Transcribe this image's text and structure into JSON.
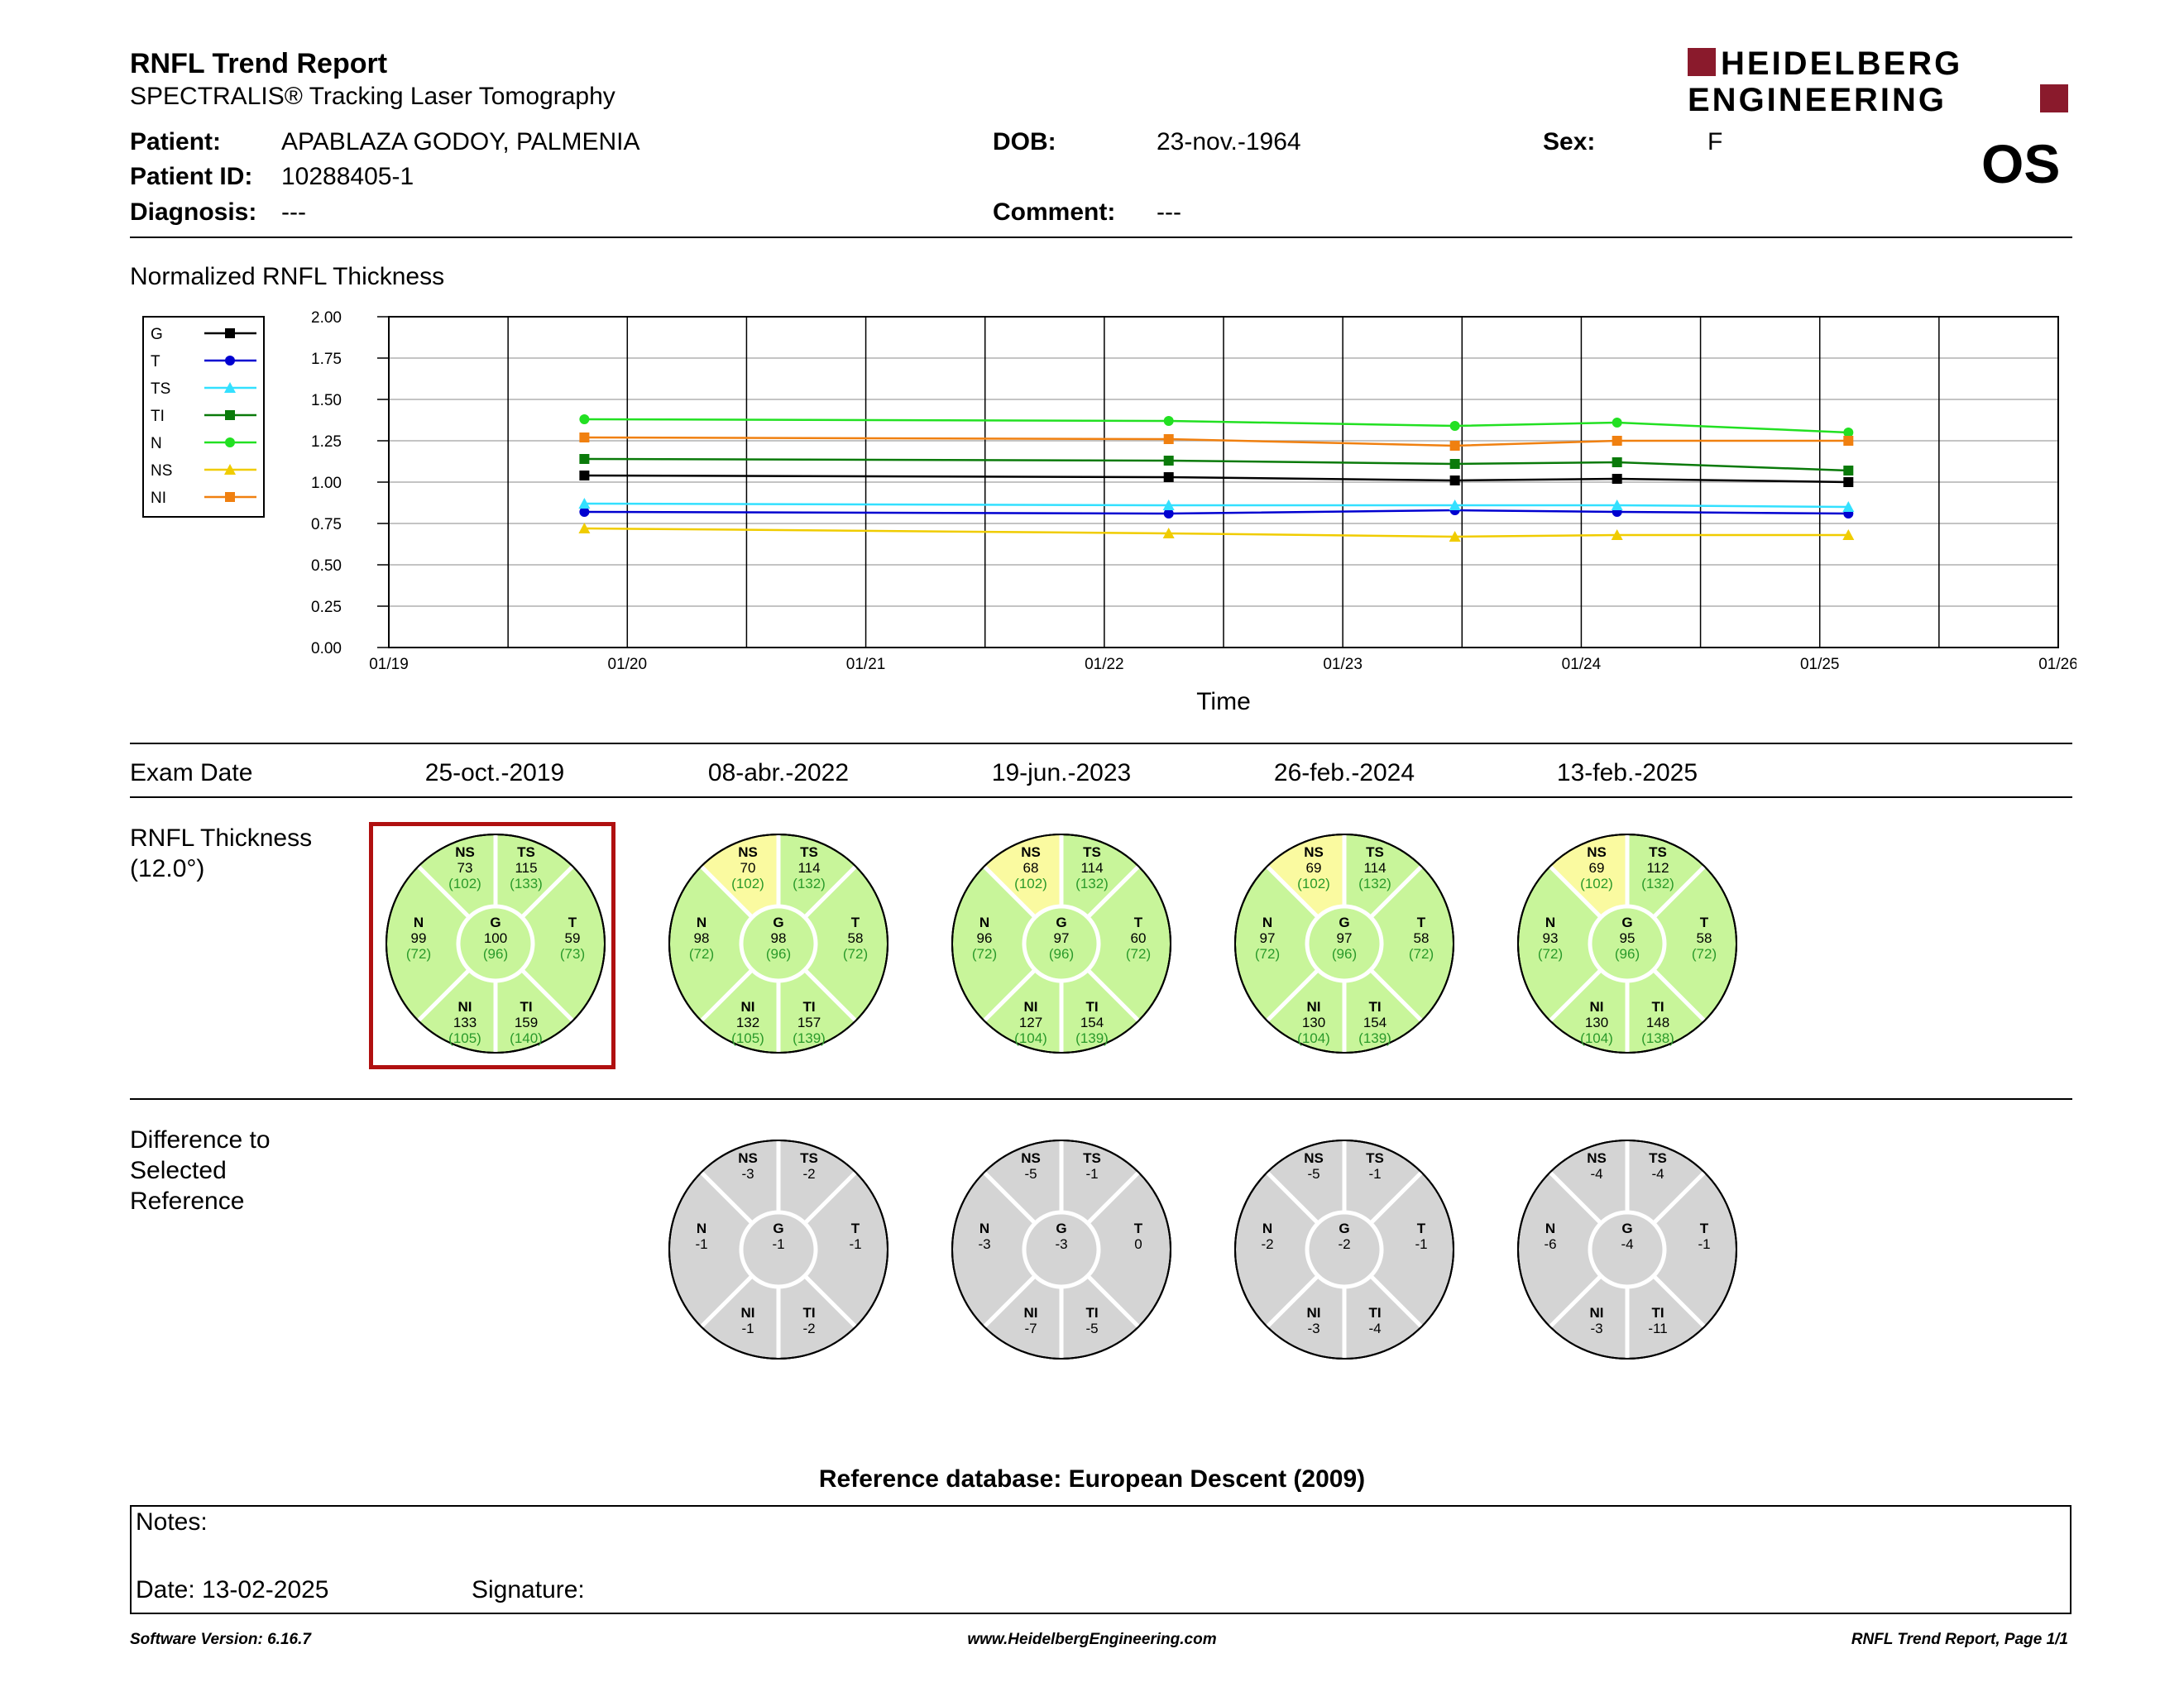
{
  "header": {
    "title": "RNFL Trend Report",
    "subtitle": "SPECTRALIS® Tracking Laser Tomography",
    "logo_line1": "HEIDELBERG",
    "logo_line2": "ENGINEERING",
    "eye": "OS",
    "brand_color": "#8a1a2c"
  },
  "patient": {
    "patient_label": "Patient:",
    "patient_value": "APABLAZA GODOY, PALMENIA",
    "dob_label": "DOB:",
    "dob_value": "23-nov.-1964",
    "sex_label": "Sex:",
    "sex_value": "F",
    "id_label": "Patient ID:",
    "id_value": "10288405-1",
    "diagnosis_label": "Diagnosis:",
    "diagnosis_value": "---",
    "comment_label": "Comment:",
    "comment_value": "---"
  },
  "chart_section_title": "Normalized RNFL Thickness",
  "chart_data": {
    "type": "line",
    "xlabel": "Time",
    "ylabel": "",
    "ylim": [
      0,
      2
    ],
    "yticks": [
      "0.00",
      "0.25",
      "0.50",
      "0.75",
      "1.00",
      "1.25",
      "1.50",
      "1.75",
      "2.00"
    ],
    "xticks": [
      "01/19",
      "01/20",
      "01/21",
      "01/22",
      "01/23",
      "01/24",
      "01/25",
      "01/26"
    ],
    "xlim": [
      2019.0,
      2026.0
    ],
    "x": [
      2019.82,
      2022.27,
      2023.47,
      2024.15,
      2025.12
    ],
    "grid": true,
    "legend_position": "top-left",
    "series": [
      {
        "name": "G",
        "color": "#000000",
        "marker": "square",
        "values": [
          1.04,
          1.03,
          1.01,
          1.02,
          1.0
        ]
      },
      {
        "name": "T",
        "color": "#0000d0",
        "marker": "circle",
        "values": [
          0.82,
          0.81,
          0.83,
          0.82,
          0.81
        ]
      },
      {
        "name": "TS",
        "color": "#33e0ff",
        "marker": "triangle",
        "values": [
          0.87,
          0.86,
          0.86,
          0.86,
          0.85
        ]
      },
      {
        "name": "TI",
        "color": "#0a7a0a",
        "marker": "square",
        "values": [
          1.14,
          1.13,
          1.11,
          1.12,
          1.07
        ]
      },
      {
        "name": "N",
        "color": "#22e022",
        "marker": "circle",
        "values": [
          1.38,
          1.37,
          1.34,
          1.36,
          1.3
        ]
      },
      {
        "name": "NS",
        "color": "#f0cc00",
        "marker": "triangle",
        "values": [
          0.72,
          0.69,
          0.67,
          0.68,
          0.68
        ]
      },
      {
        "name": "NI",
        "color": "#f08010",
        "marker": "square",
        "values": [
          1.27,
          1.26,
          1.22,
          1.25,
          1.25
        ]
      }
    ]
  },
  "exam_dates": {
    "label": "Exam Date",
    "dates": [
      "25-oct.-2019",
      "08-abr.-2022",
      "19-jun.-2023",
      "26-feb.-2024",
      "13-feb.-2025"
    ]
  },
  "thickness": {
    "label_line1": "RNFL Thickness",
    "label_line2": "(12.0°)",
    "colors": {
      "normal": "#c8f59a",
      "borderline": "#fafaa0",
      "line": "#ffffff",
      "normal_value": "#2a9a2a"
    },
    "circles": [
      {
        "NS": [
          "73",
          "(102)"
        ],
        "TS": [
          "115",
          "(133)"
        ],
        "N": [
          "99",
          "(72)"
        ],
        "G": [
          "100",
          "(96)"
        ],
        "T": [
          "59",
          "(73)"
        ],
        "NI": [
          "133",
          "(105)"
        ],
        "TI": [
          "159",
          "(140)"
        ],
        "ns_borderline": false,
        "selected": true
      },
      {
        "NS": [
          "70",
          "(102)"
        ],
        "TS": [
          "114",
          "(132)"
        ],
        "N": [
          "98",
          "(72)"
        ],
        "G": [
          "98",
          "(96)"
        ],
        "T": [
          "58",
          "(72)"
        ],
        "NI": [
          "132",
          "(105)"
        ],
        "TI": [
          "157",
          "(139)"
        ],
        "ns_borderline": true,
        "selected": false
      },
      {
        "NS": [
          "68",
          "(102)"
        ],
        "TS": [
          "114",
          "(132)"
        ],
        "N": [
          "96",
          "(72)"
        ],
        "G": [
          "97",
          "(96)"
        ],
        "T": [
          "60",
          "(72)"
        ],
        "NI": [
          "127",
          "(104)"
        ],
        "TI": [
          "154",
          "(139)"
        ],
        "ns_borderline": true,
        "selected": false
      },
      {
        "NS": [
          "69",
          "(102)"
        ],
        "TS": [
          "114",
          "(132)"
        ],
        "N": [
          "97",
          "(72)"
        ],
        "G": [
          "97",
          "(96)"
        ],
        "T": [
          "58",
          "(72)"
        ],
        "NI": [
          "130",
          "(104)"
        ],
        "TI": [
          "154",
          "(139)"
        ],
        "ns_borderline": true,
        "selected": false
      },
      {
        "NS": [
          "69",
          "(102)"
        ],
        "TS": [
          "112",
          "(132)"
        ],
        "N": [
          "93",
          "(72)"
        ],
        "G": [
          "95",
          "(96)"
        ],
        "T": [
          "58",
          "(72)"
        ],
        "NI": [
          "130",
          "(104)"
        ],
        "TI": [
          "148",
          "(138)"
        ],
        "ns_borderline": true,
        "selected": false
      }
    ]
  },
  "difference": {
    "label_line1": "Difference to",
    "label_line2": "Selected",
    "label_line3": "Reference",
    "fill": "#d4d4d4",
    "circles": [
      {
        "NS": "-3",
        "TS": "-2",
        "N": "-1",
        "G": "-1",
        "T": "-1",
        "NI": "-1",
        "TI": "-2"
      },
      {
        "NS": "-5",
        "TS": "-1",
        "N": "-3",
        "G": "-3",
        "T": "0",
        "NI": "-7",
        "TI": "-5"
      },
      {
        "NS": "-5",
        "TS": "-1",
        "N": "-2",
        "G": "-2",
        "T": "-1",
        "NI": "-3",
        "TI": "-4"
      },
      {
        "NS": "-4",
        "TS": "-4",
        "N": "-6",
        "G": "-4",
        "T": "-1",
        "NI": "-3",
        "TI": "-11"
      }
    ]
  },
  "reference_db": "Reference database: European Descent (2009)",
  "notes": {
    "notes_label": "Notes:",
    "date_label": "Date: 13-02-2025",
    "signature_label": "Signature:"
  },
  "footer": {
    "left": "Software Version: 6.16.7",
    "center": "www.HeidelbergEngineering.com",
    "right": "RNFL Trend Report, Page 1/1"
  }
}
